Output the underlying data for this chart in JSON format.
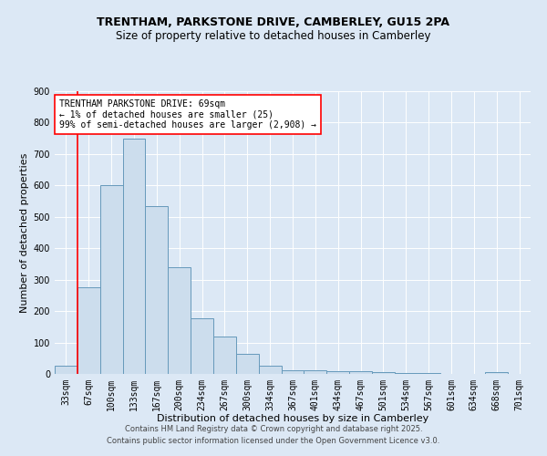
{
  "title_line1": "TRENTHAM, PARKSTONE DRIVE, CAMBERLEY, GU15 2PA",
  "title_line2": "Size of property relative to detached houses in Camberley",
  "xlabel": "Distribution of detached houses by size in Camberley",
  "ylabel": "Number of detached properties",
  "categories": [
    "33sqm",
    "67sqm",
    "100sqm",
    "133sqm",
    "167sqm",
    "200sqm",
    "234sqm",
    "267sqm",
    "300sqm",
    "334sqm",
    "367sqm",
    "401sqm",
    "434sqm",
    "467sqm",
    "501sqm",
    "534sqm",
    "567sqm",
    "601sqm",
    "634sqm",
    "668sqm",
    "701sqm"
  ],
  "values": [
    25,
    275,
    600,
    750,
    535,
    340,
    178,
    118,
    65,
    25,
    12,
    12,
    8,
    8,
    7,
    3,
    2,
    0,
    0,
    5,
    0
  ],
  "bar_color": "#ccdded",
  "bar_edge_color": "#6699bb",
  "red_line_index": 1,
  "annotation_title": "TRENTHAM PARKSTONE DRIVE: 69sqm",
  "annotation_line1": "← 1% of detached houses are smaller (25)",
  "annotation_line2": "99% of semi-detached houses are larger (2,908) →",
  "ylim": [
    0,
    900
  ],
  "yticks": [
    0,
    100,
    200,
    300,
    400,
    500,
    600,
    700,
    800,
    900
  ],
  "footer_line1": "Contains HM Land Registry data © Crown copyright and database right 2025.",
  "footer_line2": "Contains public sector information licensed under the Open Government Licence v3.0.",
  "bg_color": "#dce8f5",
  "plot_bg_color": "#dce8f5",
  "grid_color": "#ffffff",
  "title1_fontsize": 9,
  "title2_fontsize": 8.5,
  "xlabel_fontsize": 8,
  "ylabel_fontsize": 8,
  "tick_fontsize": 7,
  "annotation_fontsize": 7,
  "footer_fontsize": 6
}
